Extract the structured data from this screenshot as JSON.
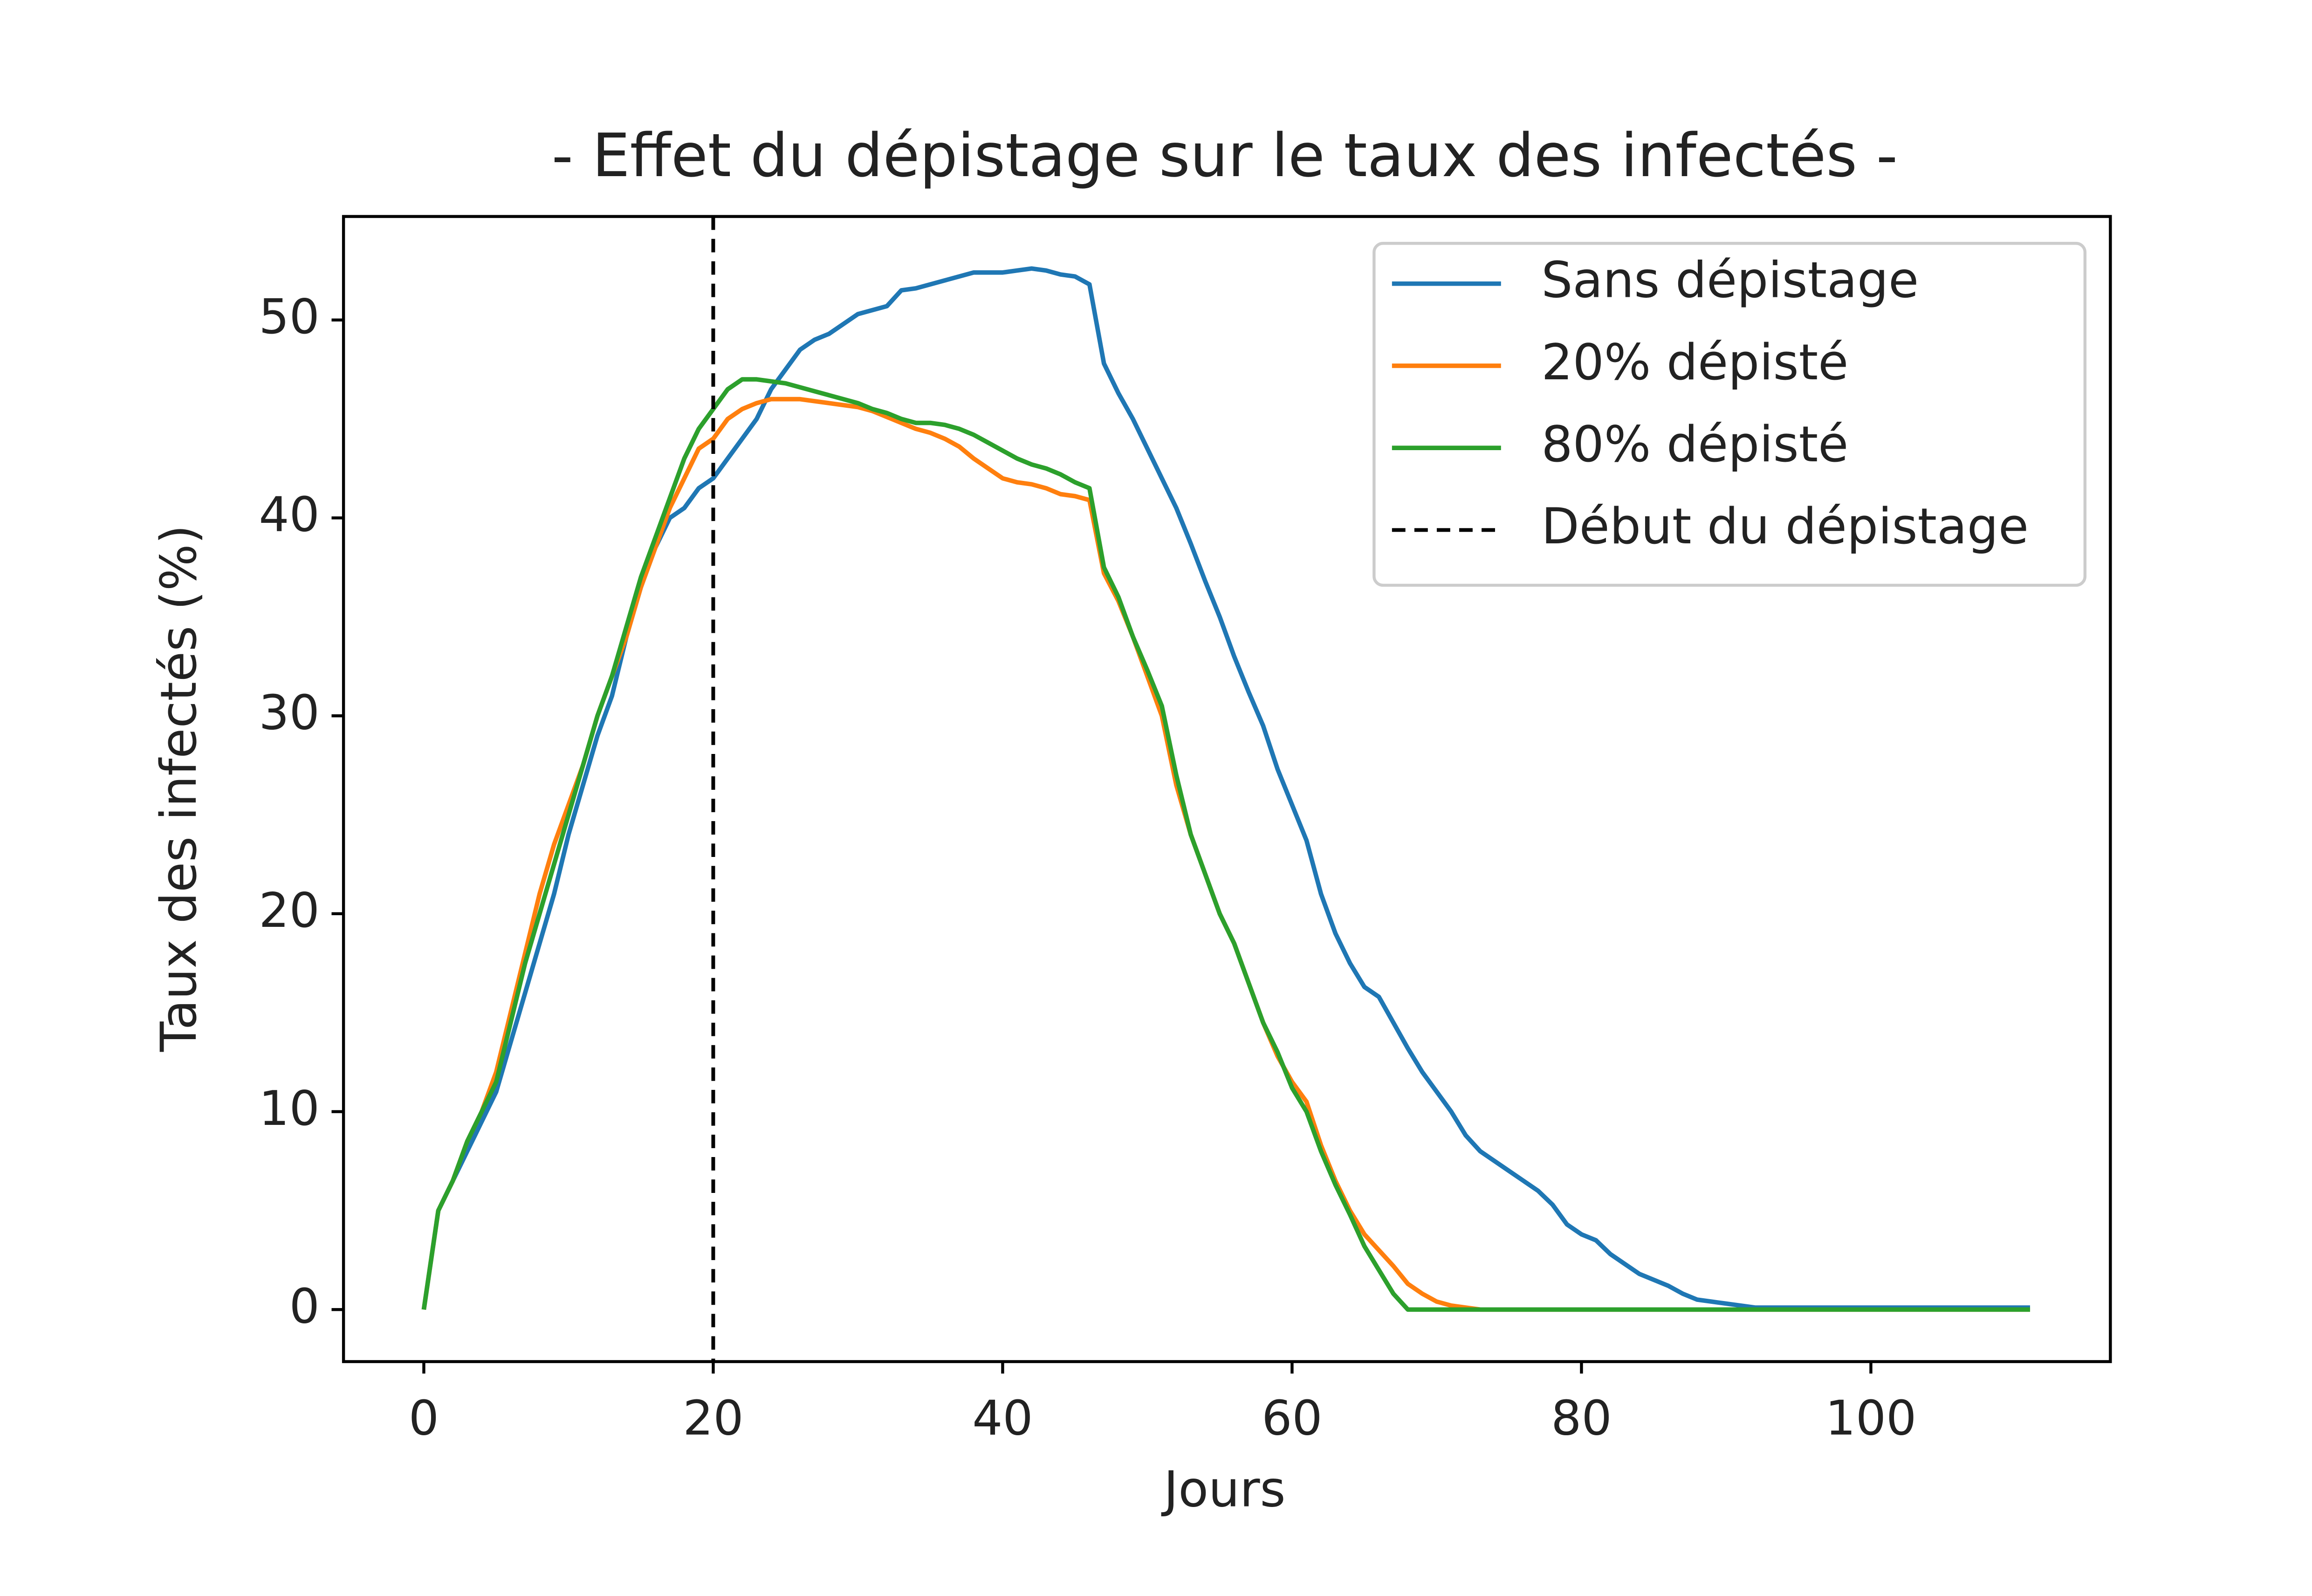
{
  "chart_data": {
    "type": "line",
    "title": "- Effet du dépistage sur le taux des infectés -",
    "xlabel": "Jours",
    "ylabel": "Taux des infectés (%)",
    "x": [
      0,
      1,
      2,
      3,
      4,
      5,
      6,
      7,
      8,
      9,
      10,
      11,
      12,
      13,
      14,
      15,
      16,
      17,
      18,
      19,
      20,
      21,
      22,
      23,
      24,
      25,
      26,
      27,
      28,
      29,
      30,
      31,
      32,
      33,
      34,
      35,
      36,
      37,
      38,
      39,
      40,
      41,
      42,
      43,
      44,
      45,
      46,
      47,
      48,
      49,
      50,
      51,
      52,
      53,
      54,
      55,
      56,
      57,
      58,
      59,
      60,
      61,
      62,
      63,
      64,
      65,
      66,
      67,
      68,
      69,
      70,
      71,
      72,
      73,
      74,
      75,
      76,
      77,
      78,
      79,
      80,
      81,
      82,
      83,
      84,
      85,
      86,
      87,
      88,
      89,
      90,
      91,
      92,
      93,
      94,
      95,
      96,
      97,
      98,
      99,
      100,
      101,
      102,
      103,
      104,
      105,
      106,
      107,
      108,
      109,
      110,
      111
    ],
    "series": [
      {
        "name": "Sans dépistage",
        "color": "#1f77b4",
        "values": [
          0,
          5,
          6.5,
          8,
          9.5,
          11,
          13.5,
          16,
          18.5,
          21,
          24,
          26.5,
          29,
          31,
          34,
          36.5,
          38.5,
          40,
          40.5,
          41.5,
          42,
          43,
          44,
          45,
          46.5,
          47.5,
          48.5,
          49,
          49.3,
          49.8,
          50.3,
          50.5,
          50.7,
          51.5,
          51.6,
          51.8,
          52,
          52.2,
          52.4,
          52.4,
          52.4,
          52.5,
          52.6,
          52.5,
          52.3,
          52.2,
          51.8,
          47.8,
          46.3,
          45,
          43.5,
          42,
          40.5,
          38.7,
          36.8,
          35,
          33,
          31.2,
          29.5,
          27.3,
          25.5,
          23.7,
          21,
          19,
          17.5,
          16.3,
          15.8,
          14.5,
          13.2,
          12,
          11,
          10,
          8.8,
          8,
          7.5,
          7,
          6.5,
          6,
          5.3,
          4.3,
          3.8,
          3.5,
          2.8,
          2.3,
          1.8,
          1.5,
          1.2,
          0.8,
          0.5,
          0.4,
          0.3,
          0.2,
          0.1,
          0.1,
          0.1,
          0.1,
          0.1,
          0.1,
          0.1,
          0.1,
          0.1,
          0.1,
          0.1,
          0.1,
          0.1,
          0.1,
          0.1,
          0.1,
          0.1,
          0.1,
          0.1,
          0.1
        ]
      },
      {
        "name": "20% dépisté",
        "color": "#ff7f0e",
        "values": [
          0,
          5,
          6.5,
          8.5,
          10,
          12,
          15,
          18,
          21,
          23.5,
          25.5,
          27.5,
          30,
          32,
          34,
          36.5,
          38.5,
          40.5,
          42,
          43.5,
          44,
          45,
          45.5,
          45.8,
          46,
          46,
          46,
          45.9,
          45.8,
          45.7,
          45.6,
          45.4,
          45.1,
          44.8,
          44.5,
          44.3,
          44,
          43.6,
          43,
          42.5,
          42,
          41.8,
          41.7,
          41.5,
          41.2,
          41.1,
          40.9,
          37.2,
          35.8,
          34,
          32,
          30,
          26.5,
          24,
          22,
          20,
          18.5,
          16.5,
          14.5,
          12.8,
          11.5,
          10.5,
          8.3,
          6.5,
          5,
          3.8,
          3,
          2.2,
          1.3,
          0.8,
          0.4,
          0.2,
          0.1,
          0,
          0,
          0,
          0,
          0,
          0,
          0,
          0,
          0,
          0,
          0,
          0,
          0,
          0,
          0,
          0,
          0,
          0,
          0,
          0,
          0,
          0,
          0,
          0,
          0,
          0,
          0,
          0,
          0,
          0,
          0,
          0,
          0,
          0,
          0,
          0,
          0,
          0,
          0
        ]
      },
      {
        "name": "80% dépisté",
        "color": "#2ca02c",
        "values": [
          0,
          5,
          6.5,
          8.5,
          10,
          11.5,
          14.5,
          17.5,
          20,
          22.5,
          25,
          27.5,
          30,
          32,
          34.5,
          37,
          39,
          41,
          43,
          44.5,
          45.5,
          46.5,
          47,
          47,
          46.9,
          46.8,
          46.6,
          46.4,
          46.2,
          46,
          45.8,
          45.5,
          45.3,
          45,
          44.8,
          44.8,
          44.7,
          44.5,
          44.2,
          43.8,
          43.4,
          43,
          42.7,
          42.5,
          42.2,
          41.8,
          41.5,
          37.5,
          36,
          34,
          32.3,
          30.5,
          27,
          24,
          22,
          20,
          18.5,
          16.5,
          14.5,
          13,
          11.2,
          10,
          8,
          6.3,
          4.8,
          3.2,
          2,
          0.8,
          0,
          0,
          0,
          0,
          0,
          0,
          0,
          0,
          0,
          0,
          0,
          0,
          0,
          0,
          0,
          0,
          0,
          0,
          0,
          0,
          0,
          0,
          0,
          0,
          0,
          0,
          0,
          0,
          0,
          0,
          0,
          0,
          0,
          0,
          0,
          0,
          0,
          0,
          0,
          0,
          0,
          0,
          0,
          0
        ]
      }
    ],
    "vline": {
      "name": "Début du dépistage",
      "x": 20,
      "color": "#000000"
    },
    "xlim": [
      -5.55,
      116.55
    ],
    "ylim": [
      -2.63,
      55.23
    ],
    "xticks": [
      0,
      20,
      40,
      60,
      80,
      100
    ],
    "yticks": [
      0,
      10,
      20,
      30,
      40,
      50
    ],
    "legend": "upper right"
  }
}
